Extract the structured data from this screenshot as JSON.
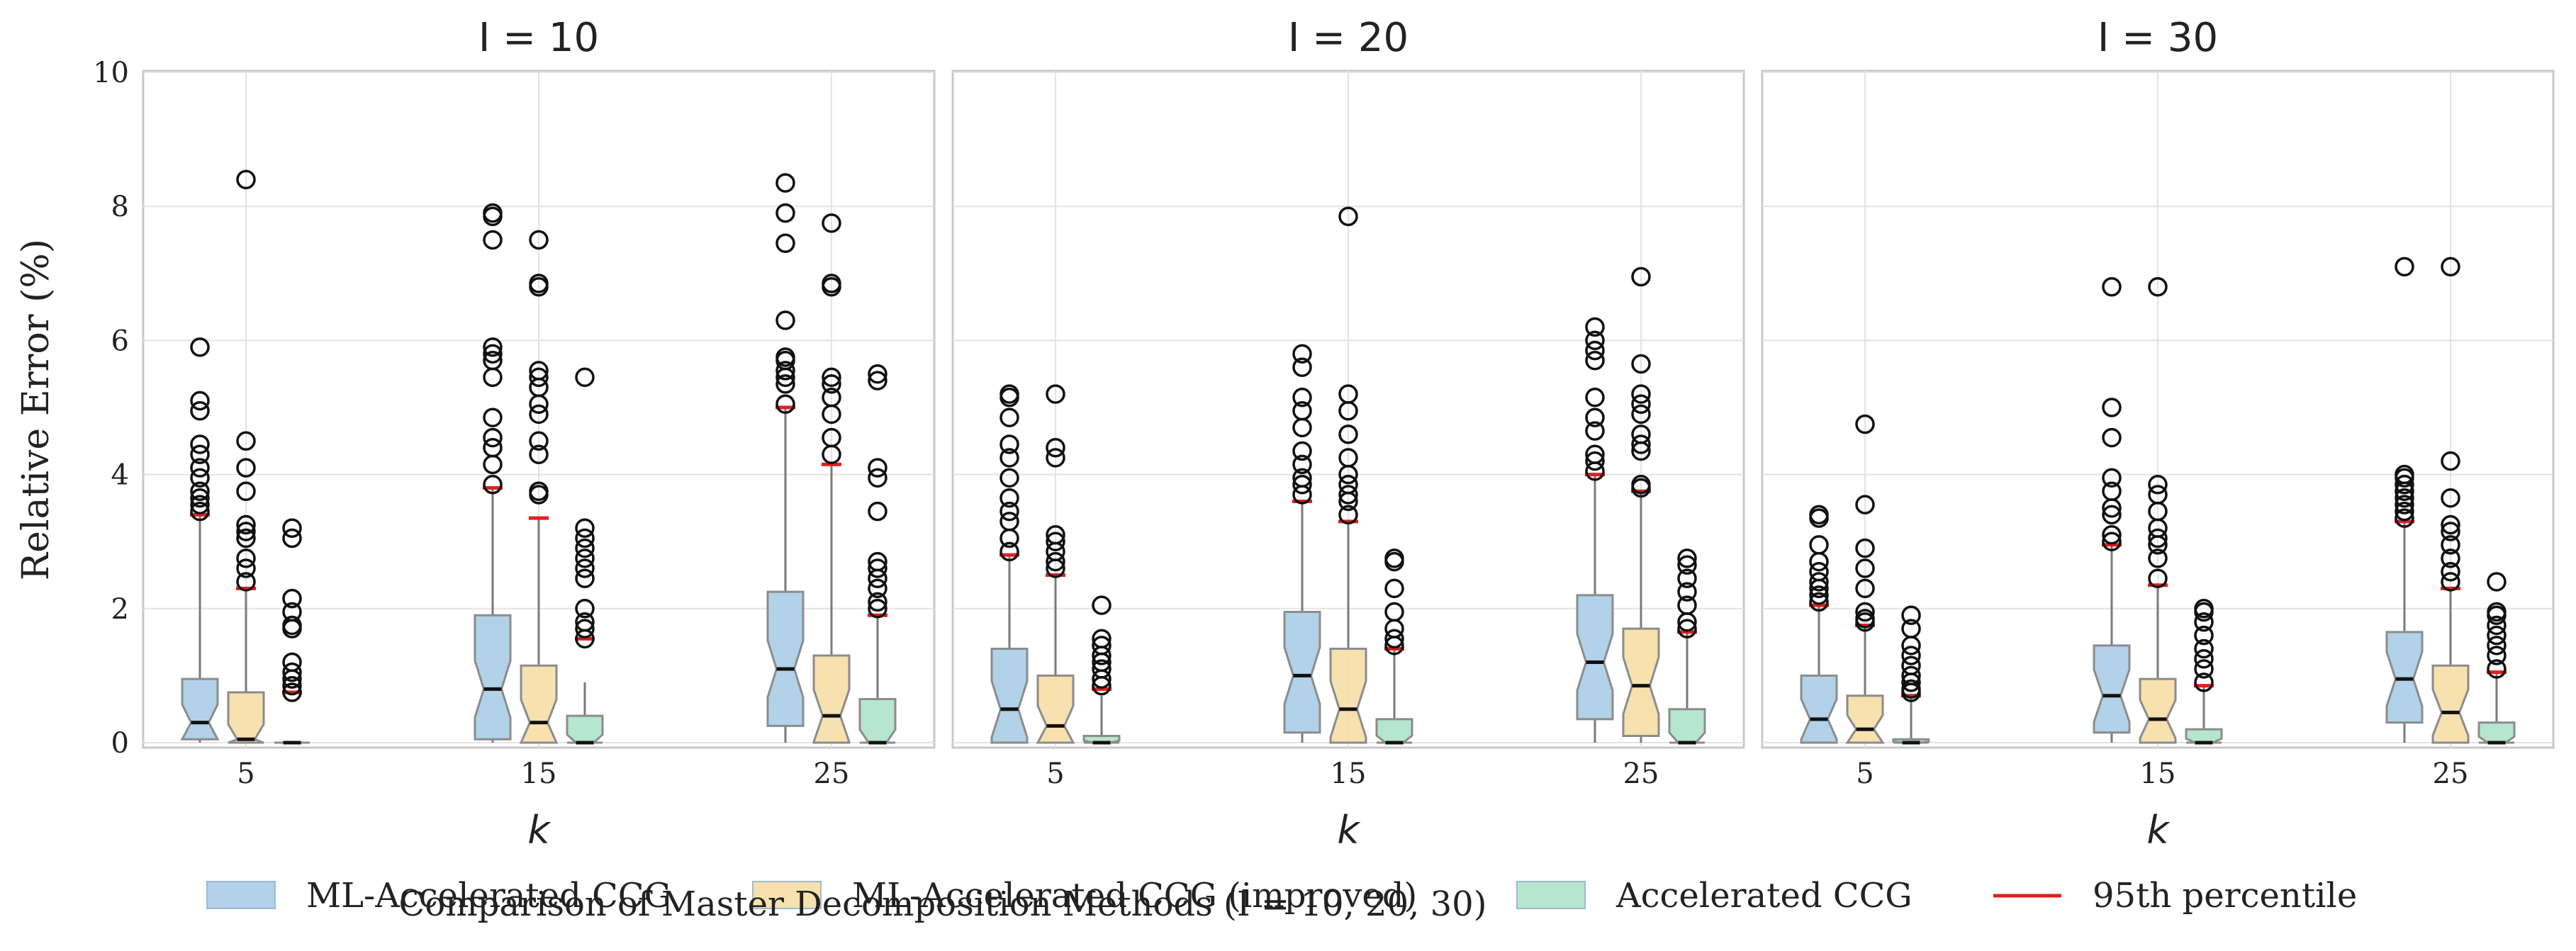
{
  "chart_data": {
    "type": "box",
    "title": "Comparison of Master Decomposition Methods (I = 10, 20, 30)",
    "ylabel": "Relative Error (%)",
    "xlabel": "k",
    "ylim": [
      0,
      10
    ],
    "yticks": [
      0,
      2,
      4,
      6,
      8,
      10
    ],
    "categories": [
      "5",
      "15",
      "25"
    ],
    "grid": true,
    "legend_position": "bottom",
    "series": [
      {
        "name": "ML-Accelerated CCG",
        "color": "#a9cde6"
      },
      {
        "name": "ML-Accelerated CCG (improved)",
        "color": "#f5dea6"
      },
      {
        "name": "Accelerated CCG",
        "color": "#aee3c8"
      }
    ],
    "percentile_label": "95th percentile",
    "percentile_color": "#e02020",
    "panels": [
      {
        "title": "I = 10",
        "boxes": [
          [
            {
              "q1": 0.05,
              "median": 0.3,
              "q3": 0.95,
              "whisker_low": 0.0,
              "whisker_high": 3.4,
              "p95": 3.4,
              "outliers": [
                3.45,
                3.55,
                3.65,
                3.75,
                3.95,
                4.1,
                4.3,
                4.45,
                4.95,
                5.1,
                5.9
              ]
            },
            {
              "q1": 0.0,
              "median": 0.05,
              "q3": 0.75,
              "whisker_low": 0.0,
              "whisker_high": 2.3,
              "p95": 2.3,
              "outliers": [
                2.4,
                2.6,
                2.75,
                3.05,
                3.15,
                3.25,
                3.75,
                4.1,
                4.5,
                8.4
              ]
            },
            {
              "q1": 0.0,
              "median": 0.0,
              "q3": 0.0,
              "whisker_low": 0.0,
              "whisker_high": 0.0,
              "p95": 0.75,
              "outliers": [
                0.75,
                0.85,
                0.95,
                1.05,
                1.2,
                1.7,
                1.75,
                1.95,
                2.15,
                3.05,
                3.2
              ]
            }
          ],
          [
            {
              "q1": 0.05,
              "median": 0.8,
              "q3": 1.9,
              "whisker_low": 0.0,
              "whisker_high": 3.8,
              "p95": 3.8,
              "outliers": [
                3.85,
                4.15,
                4.4,
                4.55,
                4.85,
                5.45,
                5.7,
                5.8,
                5.9,
                7.5,
                7.85,
                7.9
              ]
            },
            {
              "q1": 0.0,
              "median": 0.3,
              "q3": 1.15,
              "whisker_low": 0.0,
              "whisker_high": 3.35,
              "p95": 3.35,
              "outliers": [
                3.7,
                3.75,
                4.3,
                4.5,
                4.9,
                5.05,
                5.3,
                5.45,
                5.55,
                6.8,
                6.85,
                7.5
              ]
            },
            {
              "q1": 0.0,
              "median": 0.0,
              "q3": 0.4,
              "whisker_low": 0.0,
              "whisker_high": 0.9,
              "p95": 1.55,
              "outliers": [
                1.55,
                1.7,
                1.8,
                2.0,
                2.45,
                2.6,
                2.75,
                2.9,
                3.05,
                3.2,
                5.45
              ]
            }
          ],
          [
            {
              "q1": 0.25,
              "median": 1.1,
              "q3": 2.25,
              "whisker_low": 0.0,
              "whisker_high": 5.0,
              "p95": 5.0,
              "outliers": [
                5.05,
                5.35,
                5.45,
                5.55,
                5.7,
                5.75,
                6.3,
                7.45,
                7.9,
                8.35
              ]
            },
            {
              "q1": 0.0,
              "median": 0.4,
              "q3": 1.3,
              "whisker_low": 0.0,
              "whisker_high": 4.15,
              "p95": 4.15,
              "outliers": [
                4.3,
                4.55,
                4.9,
                5.15,
                5.35,
                5.45,
                6.8,
                6.85,
                7.75
              ]
            },
            {
              "q1": 0.0,
              "median": 0.0,
              "q3": 0.65,
              "whisker_low": 0.0,
              "whisker_high": 1.9,
              "p95": 1.9,
              "outliers": [
                2.0,
                2.1,
                2.3,
                2.45,
                2.6,
                2.7,
                3.45,
                3.95,
                4.1,
                5.4,
                5.5
              ]
            }
          ]
        ]
      },
      {
        "title": "I = 20",
        "boxes": [
          [
            {
              "q1": 0.0,
              "median": 0.5,
              "q3": 1.4,
              "whisker_low": 0.0,
              "whisker_high": 2.8,
              "p95": 2.8,
              "outliers": [
                2.85,
                3.05,
                3.3,
                3.45,
                3.65,
                3.95,
                4.25,
                4.45,
                4.85,
                5.15,
                5.2
              ]
            },
            {
              "q1": 0.0,
              "median": 0.25,
              "q3": 1.0,
              "whisker_low": 0.0,
              "whisker_high": 2.5,
              "p95": 2.5,
              "outliers": [
                2.6,
                2.7,
                2.85,
                3.0,
                3.1,
                4.25,
                4.4,
                5.2
              ]
            },
            {
              "q1": 0.0,
              "median": 0.0,
              "q3": 0.1,
              "whisker_low": 0.0,
              "whisker_high": 0.7,
              "p95": 0.8,
              "outliers": [
                0.85,
                0.95,
                1.1,
                1.2,
                1.3,
                1.45,
                1.55,
                2.05
              ]
            }
          ],
          [
            {
              "q1": 0.15,
              "median": 1.0,
              "q3": 1.95,
              "whisker_low": 0.0,
              "whisker_high": 3.6,
              "p95": 3.6,
              "outliers": [
                3.7,
                3.85,
                3.95,
                4.15,
                4.35,
                4.7,
                4.95,
                5.15,
                5.6,
                5.8
              ]
            },
            {
              "q1": 0.0,
              "median": 0.5,
              "q3": 1.4,
              "whisker_low": 0.0,
              "whisker_high": 3.3,
              "p95": 3.3,
              "outliers": [
                3.4,
                3.6,
                3.7,
                3.85,
                4.0,
                4.25,
                4.6,
                4.95,
                5.2,
                7.85
              ]
            },
            {
              "q1": 0.0,
              "median": 0.0,
              "q3": 0.35,
              "whisker_low": 0.0,
              "whisker_high": 1.4,
              "p95": 1.4,
              "outliers": [
                1.45,
                1.55,
                1.7,
                1.95,
                2.3,
                2.7,
                2.75
              ]
            }
          ],
          [
            {
              "q1": 0.35,
              "median": 1.2,
              "q3": 2.2,
              "whisker_low": 0.0,
              "whisker_high": 4.0,
              "p95": 4.0,
              "outliers": [
                4.05,
                4.2,
                4.3,
                4.65,
                4.85,
                5.15,
                5.7,
                5.85,
                6.0,
                6.2
              ]
            },
            {
              "q1": 0.1,
              "median": 0.85,
              "q3": 1.7,
              "whisker_low": 0.0,
              "whisker_high": 3.75,
              "p95": 3.75,
              "outliers": [
                3.8,
                3.85,
                4.35,
                4.45,
                4.6,
                4.9,
                5.05,
                5.2,
                5.65,
                6.95
              ]
            },
            {
              "q1": 0.0,
              "median": 0.0,
              "q3": 0.5,
              "whisker_low": 0.0,
              "whisker_high": 1.65,
              "p95": 1.65,
              "outliers": [
                1.7,
                1.8,
                2.05,
                2.25,
                2.45,
                2.65,
                2.75
              ]
            }
          ]
        ]
      },
      {
        "title": "I = 30",
        "boxes": [
          [
            {
              "q1": 0.0,
              "median": 0.35,
              "q3": 1.0,
              "whisker_low": 0.0,
              "whisker_high": 2.05,
              "p95": 2.05,
              "outliers": [
                2.1,
                2.2,
                2.3,
                2.4,
                2.55,
                2.7,
                2.95,
                3.35,
                3.4
              ]
            },
            {
              "q1": 0.0,
              "median": 0.2,
              "q3": 0.7,
              "whisker_low": 0.0,
              "whisker_high": 1.75,
              "p95": 1.75,
              "outliers": [
                1.8,
                1.85,
                1.95,
                2.3,
                2.6,
                2.9,
                3.55,
                4.75
              ]
            },
            {
              "q1": 0.0,
              "median": 0.0,
              "q3": 0.05,
              "whisker_low": 0.0,
              "whisker_high": 0.65,
              "p95": 0.7,
              "outliers": [
                0.75,
                0.8,
                0.9,
                1.0,
                1.15,
                1.3,
                1.45,
                1.7,
                1.9
              ]
            }
          ],
          [
            {
              "q1": 0.15,
              "median": 0.7,
              "q3": 1.45,
              "whisker_low": 0.0,
              "whisker_high": 2.95,
              "p95": 2.95,
              "outliers": [
                3.0,
                3.1,
                3.4,
                3.5,
                3.75,
                3.95,
                4.55,
                5.0,
                6.8
              ]
            },
            {
              "q1": 0.0,
              "median": 0.35,
              "q3": 0.95,
              "whisker_low": 0.0,
              "whisker_high": 2.35,
              "p95": 2.35,
              "outliers": [
                2.45,
                2.75,
                2.95,
                3.05,
                3.2,
                3.45,
                3.7,
                3.85,
                6.8
              ]
            },
            {
              "q1": 0.0,
              "median": 0.0,
              "q3": 0.2,
              "whisker_low": 0.0,
              "whisker_high": 0.85,
              "p95": 0.85,
              "outliers": [
                0.9,
                1.1,
                1.25,
                1.4,
                1.6,
                1.8,
                1.95,
                2.0
              ]
            }
          ],
          [
            {
              "q1": 0.3,
              "median": 0.95,
              "q3": 1.65,
              "whisker_low": 0.0,
              "whisker_high": 3.3,
              "p95": 3.3,
              "outliers": [
                3.35,
                3.45,
                3.55,
                3.65,
                3.75,
                3.85,
                3.95,
                4.0,
                7.1
              ]
            },
            {
              "q1": 0.0,
              "median": 0.45,
              "q3": 1.15,
              "whisker_low": 0.0,
              "whisker_high": 2.3,
              "p95": 2.3,
              "outliers": [
                2.4,
                2.55,
                2.75,
                2.95,
                3.15,
                3.25,
                3.65,
                4.2,
                7.1
              ]
            },
            {
              "q1": 0.0,
              "median": 0.0,
              "q3": 0.3,
              "whisker_low": 0.0,
              "whisker_high": 1.05,
              "p95": 1.05,
              "outliers": [
                1.1,
                1.3,
                1.45,
                1.6,
                1.75,
                1.9,
                1.95,
                2.4
              ]
            }
          ]
        ]
      }
    ]
  }
}
